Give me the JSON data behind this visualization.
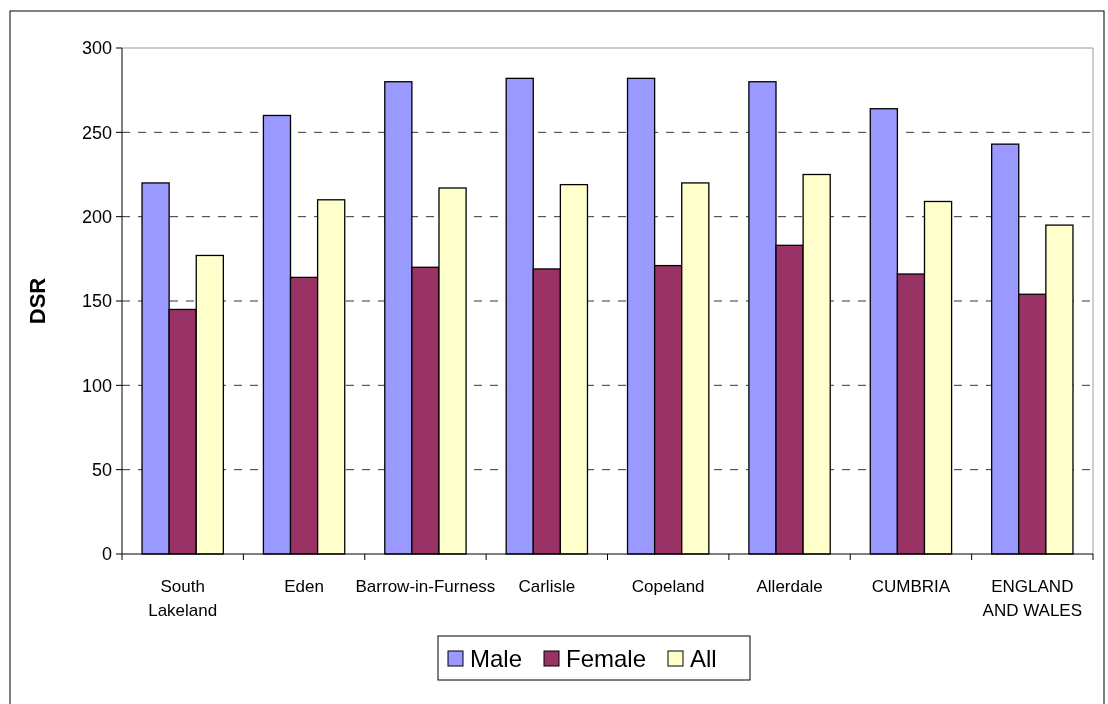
{
  "chart_data": {
    "type": "bar",
    "ylabel": "DSR",
    "categories": [
      "South Lakeland",
      "Eden",
      "Barrow-in-Furness",
      "Carlisle",
      "Copeland",
      "Allerdale",
      "CUMBRIA",
      "ENGLAND AND WALES"
    ],
    "series": [
      {
        "name": "Male",
        "color": "#9999ff",
        "values": [
          220,
          260,
          280,
          282,
          282,
          280,
          264,
          243
        ]
      },
      {
        "name": "Female",
        "color": "#993366",
        "values": [
          145,
          164,
          170,
          169,
          171,
          183,
          166,
          154
        ]
      },
      {
        "name": "All",
        "color": "#ffffcc",
        "values": [
          177,
          210,
          217,
          219,
          220,
          225,
          209,
          195
        ]
      }
    ],
    "ylim": [
      0,
      300
    ],
    "yticks": [
      0,
      50,
      100,
      150,
      200,
      250,
      300
    ],
    "grid": "y",
    "legend": "bottom"
  }
}
